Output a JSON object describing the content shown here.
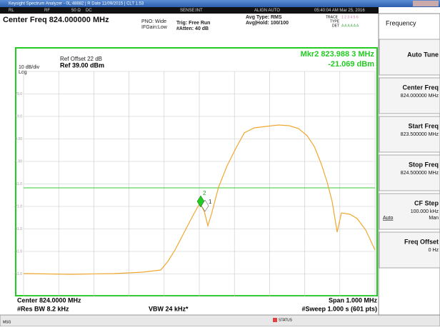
{
  "window": {
    "title": "Keysight Spectrum Analyzer - 0L:48882 | R Date 11/09/2015 | CLT 1.53"
  },
  "status_bar": {
    "items": [
      "RL",
      "RF",
      "50 Ω",
      "DC",
      "SENSE:INT",
      "ALIGN AUTO"
    ],
    "time": "05:40:04 AM Mar 25, 2016"
  },
  "header": {
    "center_freq": "Center Freq 824.000000 MHz",
    "pno": "PNO: Wide",
    "ifgain": "IFGain:Low",
    "trig": "Trig: Free Run",
    "atten": "#Atten: 40 dB",
    "avg_type": "Avg Type: RMS",
    "avg_hold": "Avg|Hold: 100/100",
    "trace": "TRACE",
    "trace_nums": "1 2 3 4 5 6",
    "type": "TYPE",
    "det": "DET",
    "det_vals": "A A A A A A"
  },
  "plot": {
    "ref_offset": "Ref Offset 22 dB",
    "ref": "Ref 39.00 dBm",
    "scale": "10 dB/div",
    "log": "Log",
    "marker_freq": "Mkr2 823.988 3 MHz",
    "marker_level": "-21.069 dBm",
    "y_labels": [
      "29.0",
      "19.0",
      "9.00",
      "-1.00",
      "-11.0",
      "-21.0",
      "-31.0",
      "-41.0",
      "-51.0"
    ],
    "marker_labels": [
      "2",
      "1"
    ]
  },
  "footer": {
    "center": "Center 824.0000 MHz",
    "res_bw": "#Res BW 8.2 kHz",
    "vbw": "VBW 24 kHz*",
    "span": "Span 1.000 MHz",
    "sweep": "#Sweep  1.000 s (601 pts)"
  },
  "message_bar": {
    "msg": "MSG",
    "status": "STATUS"
  },
  "menu": {
    "title": "Frequency",
    "keys": [
      {
        "label": "Auto Tune"
      },
      {
        "label": "Center Freq",
        "value": "824.000000 MHz"
      },
      {
        "label": "Start Freq",
        "value": "823.500000 MHz"
      },
      {
        "label": "Stop Freq",
        "value": "824.500000 MHz"
      },
      {
        "label": "CF Step",
        "value": "100.000 kHz",
        "left": "Auto",
        "right": "Man"
      },
      {
        "label": "Freq Offset",
        "value": "0 Hz"
      }
    ]
  }
}
